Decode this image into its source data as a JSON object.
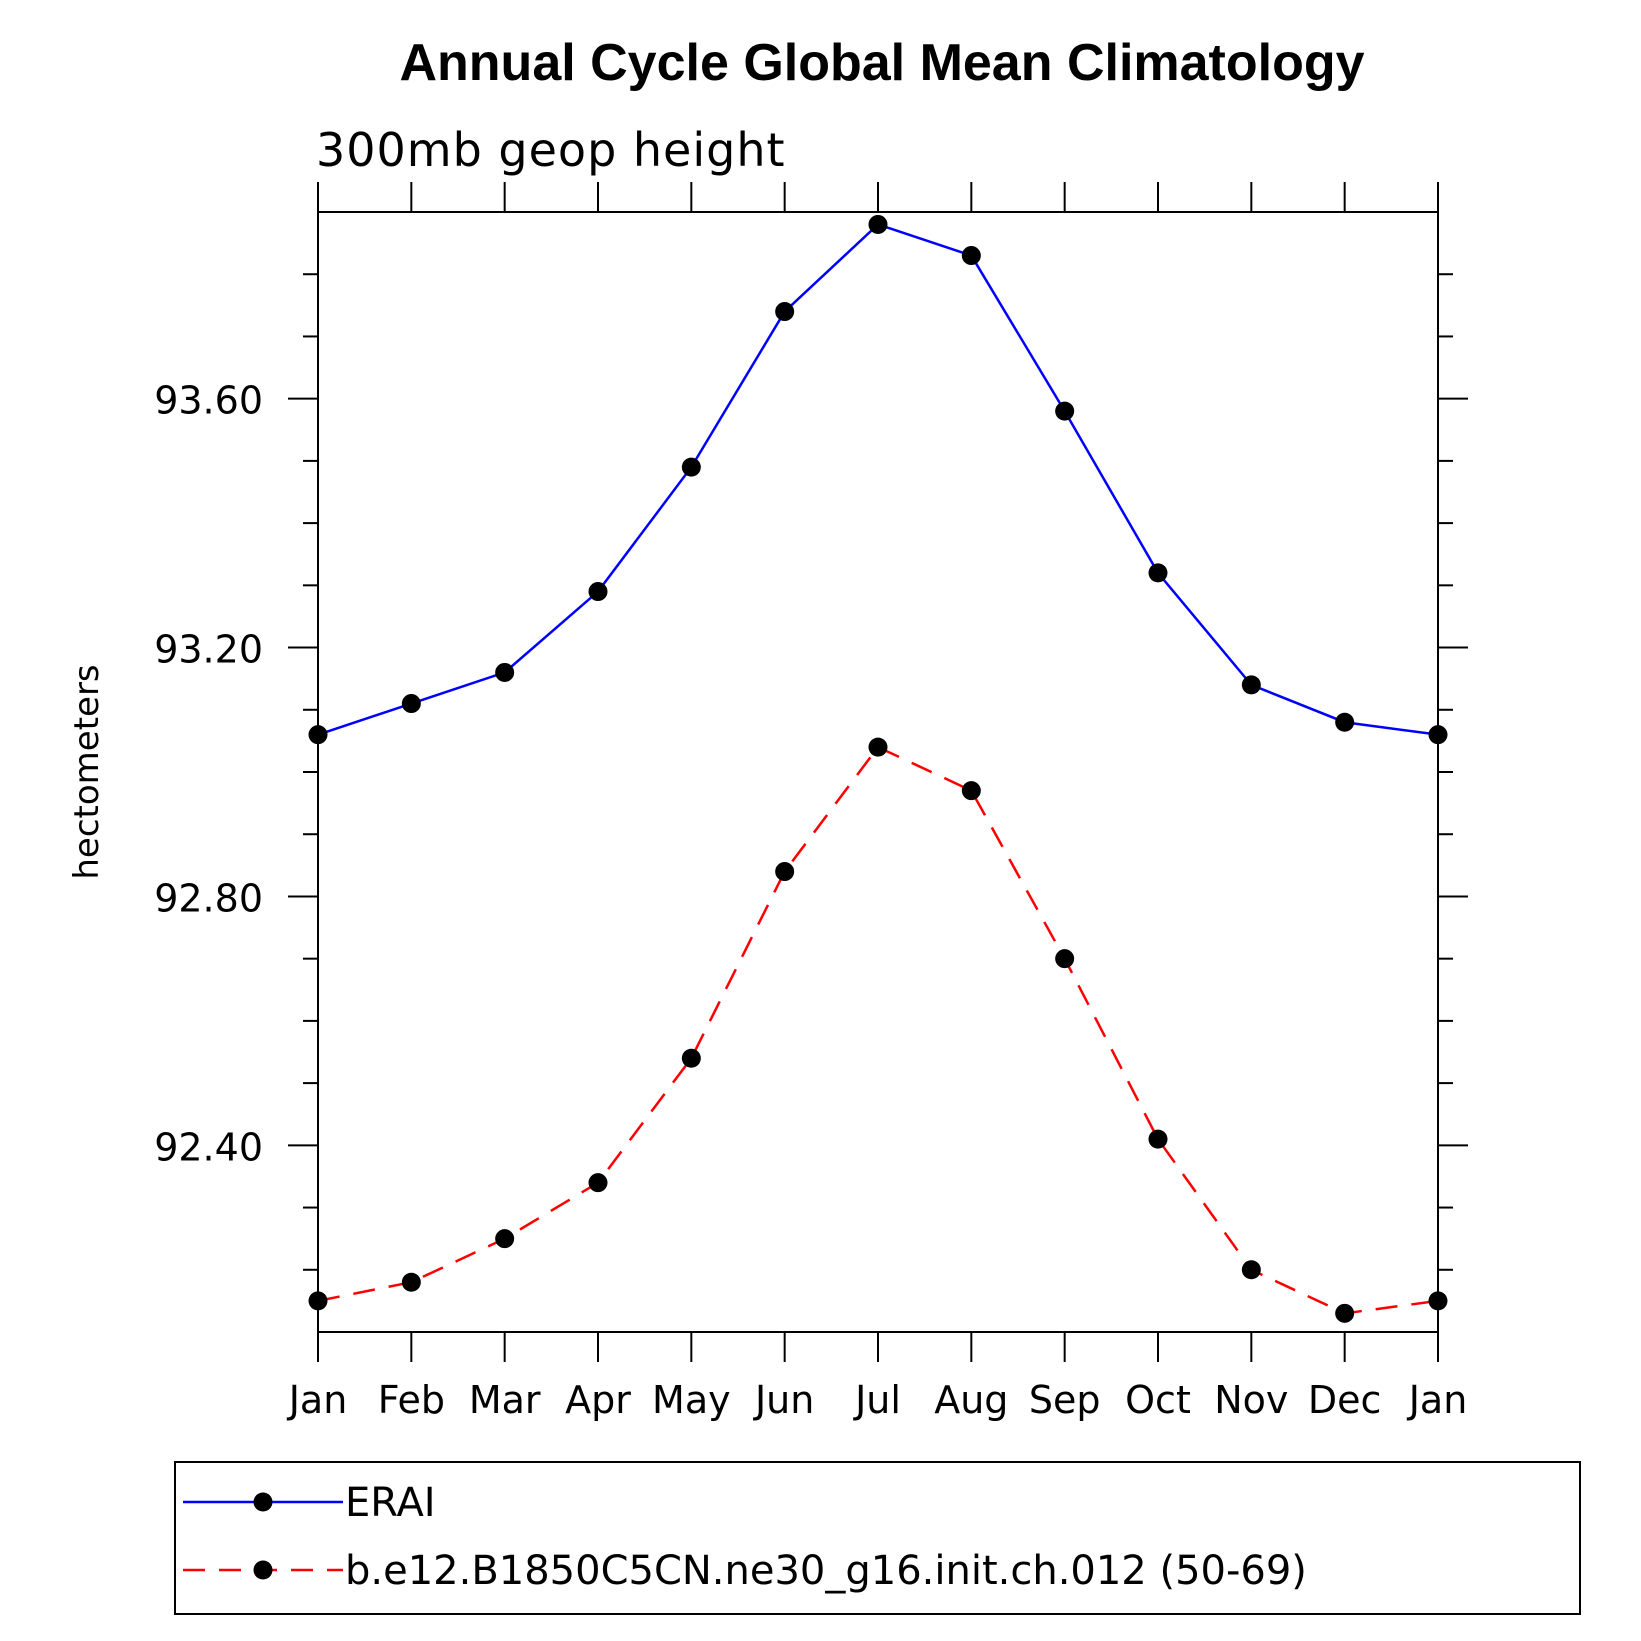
{
  "chart_data": {
    "type": "line",
    "title": "Annual Cycle Global Mean Climatology",
    "subtitle": "300mb geop height",
    "xlabel": "",
    "ylabel": "hectometers",
    "categories": [
      "Jan",
      "Feb",
      "Mar",
      "Apr",
      "May",
      "Jun",
      "Jul",
      "Aug",
      "Sep",
      "Oct",
      "Nov",
      "Dec",
      "Jan"
    ],
    "ylim": [
      92.1,
      93.9
    ],
    "yticks": [
      92.4,
      92.8,
      93.2,
      93.6
    ],
    "ytick_labels": [
      "92.40",
      "92.80",
      "93.20",
      "93.60"
    ],
    "series": [
      {
        "name": "ERAI",
        "color": "#0000ff",
        "dash": "solid",
        "values": [
          93.06,
          93.11,
          93.16,
          93.29,
          93.49,
          93.74,
          93.88,
          93.83,
          93.58,
          93.32,
          93.14,
          93.08,
          93.06
        ]
      },
      {
        "name": "b.e12.B1850C5CN.ne30_g16.init.ch.012 (50-69)",
        "color": "#ff0000",
        "dash": "dashed",
        "values": [
          92.15,
          92.18,
          92.25,
          92.34,
          92.54,
          92.84,
          93.04,
          92.97,
          92.7,
          92.41,
          92.2,
          92.13,
          92.15
        ]
      }
    ],
    "marker_color": "#000000",
    "legend_position": "bottom",
    "grid": false
  }
}
